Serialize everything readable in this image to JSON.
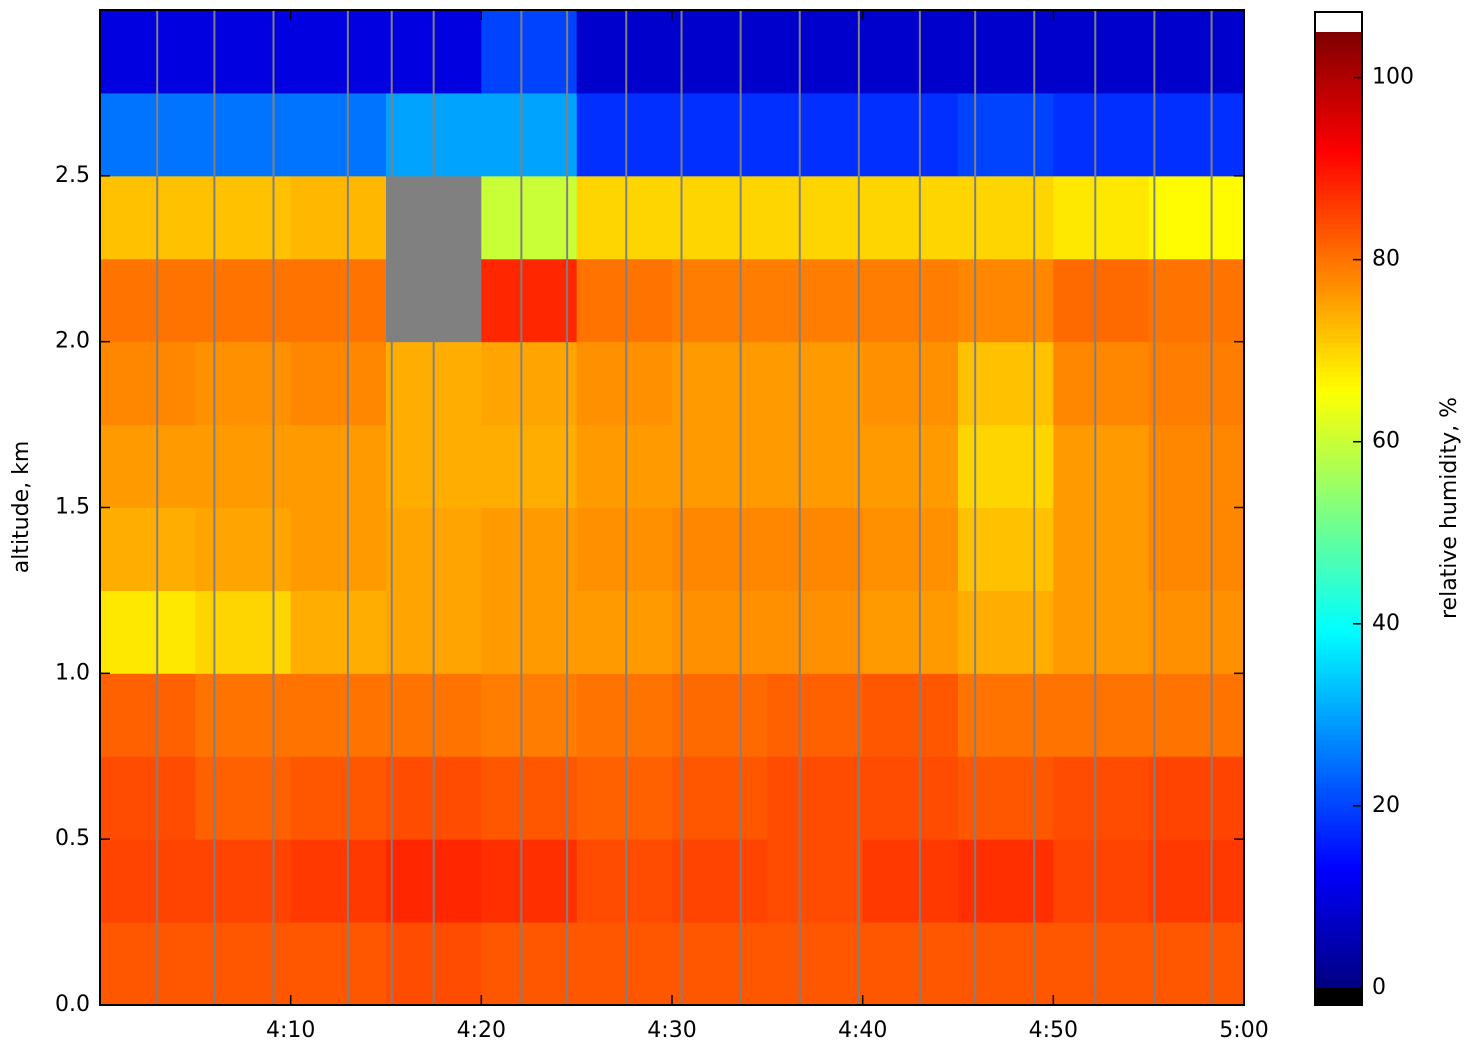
{
  "chart_data": {
    "type": "heatmap",
    "x_label": null,
    "y_label": "altitude, km",
    "colorbar_label": "relative humidity, %",
    "colormap": "jet",
    "null_color": "#808080",
    "over_color": "#ffffff",
    "under_color": "#000000",
    "x_edges": [
      240,
      245,
      250,
      255,
      260,
      265,
      270,
      275,
      280,
      285,
      290,
      295,
      300
    ],
    "y_edges": [
      0,
      0.25,
      0.5,
      0.75,
      1.0,
      1.25,
      1.5,
      1.75,
      2.0,
      2.25,
      2.5,
      2.75,
      3.0
    ],
    "z": [
      [
        83,
        83,
        83,
        84,
        83,
        83,
        83,
        83,
        83,
        83,
        83,
        83
      ],
      [
        85,
        85,
        86,
        88,
        87,
        84,
        85,
        84,
        86,
        87,
        85,
        86
      ],
      [
        84,
        82,
        83,
        84,
        83,
        82,
        83,
        84,
        84,
        83,
        84,
        85
      ],
      [
        82,
        80,
        80,
        80,
        79,
        80,
        81,
        82,
        83,
        80,
        80,
        80
      ],
      [
        68,
        70,
        74,
        75,
        76,
        76,
        77,
        77,
        76,
        74,
        76,
        77
      ],
      [
        74,
        75,
        76,
        75,
        76,
        77,
        78,
        78,
        77,
        72,
        76,
        78
      ],
      [
        76,
        76,
        76,
        74,
        74,
        76,
        76,
        76,
        76,
        70,
        76,
        78
      ],
      [
        78,
        77,
        78,
        74,
        75,
        77,
        76,
        76,
        77,
        72,
        78,
        79
      ],
      [
        80,
        80,
        80,
        null,
        88,
        80,
        79,
        79,
        79,
        78,
        81,
        80
      ],
      [
        72,
        72,
        73,
        null,
        60,
        70,
        70,
        70,
        70,
        70,
        68,
        66
      ],
      [
        25,
        25,
        25,
        30,
        30,
        18,
        18,
        18,
        18,
        20,
        18,
        18
      ],
      [
        10,
        10,
        10,
        10,
        20,
        8,
        8,
        8,
        8,
        8,
        8,
        8
      ]
    ],
    "vlines": [
      243,
      246,
      249.1,
      253,
      255.3,
      257.5,
      262.1,
      264.5,
      267.6,
      270.5,
      273.6,
      276.7,
      279.8,
      283,
      285.9,
      289,
      292.2,
      295.3,
      298.3
    ],
    "vline_color": "#808080",
    "xlim": [
      240,
      300
    ],
    "xticks": [
      {
        "value": 250,
        "label": "4:10"
      },
      {
        "value": 260,
        "label": "4:20"
      },
      {
        "value": 270,
        "label": "4:30"
      },
      {
        "value": 280,
        "label": "4:40"
      },
      {
        "value": 290,
        "label": "4:50"
      },
      {
        "value": 300,
        "label": "5:00"
      }
    ],
    "ylim": [
      0,
      3.0
    ],
    "yticks": [
      {
        "value": 0,
        "label": "0.0"
      },
      0.5,
      {
        "value": 1,
        "label": "1.0"
      },
      1.5,
      {
        "value": 2,
        "label": "2.0"
      },
      2.5
    ],
    "clim": [
      0,
      105
    ],
    "cticks": [
      0,
      20,
      40,
      60,
      80,
      100
    ]
  }
}
